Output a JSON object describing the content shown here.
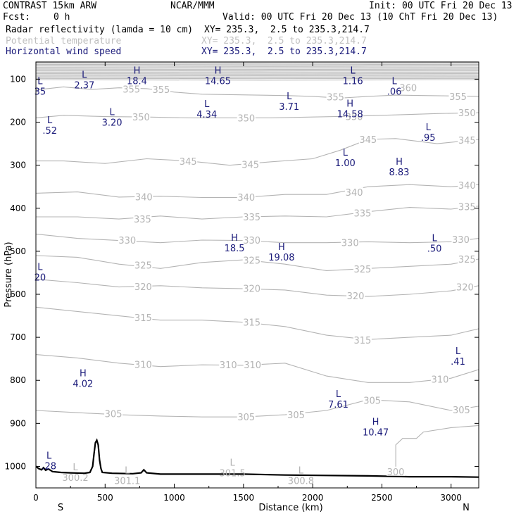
{
  "header": {
    "model": "CONTRAST 15km ARW",
    "center": "NCAR/MMM",
    "init": "Init: 00 UTC Fri 20 Dec 13",
    "fcst_label": "Fcst:",
    "fcst_value": "0 h",
    "valid": "Valid: 00 UTC Fri 20 Dec 13 (10 ChT Fri 20 Dec 13)",
    "fields": [
      {
        "name": "Radar reflectivity (lamda = 10 cm)",
        "xy": "XY= 235.3,  2.5 to 235.3,214.7"
      },
      {
        "name": "Potential temperature",
        "xy": "XY= 235.3,  2.5 to 235.3,214.7"
      },
      {
        "name": "Horizontal wind speed",
        "xy": "XY= 235.3,  2.5 to 235.3,214.7"
      }
    ]
  },
  "colors": {
    "theta": "#b4b4b4",
    "wind": "#1a1a7a",
    "terrain": "#000000",
    "surface_labels": "#b4b4b4"
  },
  "chart_data": {
    "type": "cross-section",
    "xlabel": "Distance (km)",
    "ylabel": "Pressure (hPa)",
    "xlim": [
      0,
      3200
    ],
    "ylim": [
      1050,
      60
    ],
    "x_ticks": [
      0,
      500,
      1000,
      1500,
      2000,
      2500,
      3000
    ],
    "y_ticks": [
      100,
      200,
      300,
      400,
      500,
      600,
      700,
      800,
      900,
      1000
    ],
    "end_left": "S",
    "end_right": "N",
    "theta_contours": [
      {
        "level": 355,
        "points": [
          [
            0,
            125
          ],
          [
            200,
            118
          ],
          [
            400,
            124
          ],
          [
            600,
            120
          ],
          [
            800,
            122
          ],
          [
            1000,
            130
          ],
          [
            1200,
            135
          ],
          [
            1400,
            136
          ],
          [
            1600,
            137
          ],
          [
            1800,
            138
          ],
          [
            2000,
            140
          ],
          [
            2200,
            144
          ],
          [
            2400,
            140
          ],
          [
            2600,
            137
          ],
          [
            2800,
            138
          ],
          [
            3200,
            140
          ]
        ]
      },
      {
        "level": 350,
        "points": [
          [
            0,
            190
          ],
          [
            200,
            184
          ],
          [
            500,
            187
          ],
          [
            800,
            188
          ],
          [
            1100,
            190
          ],
          [
            1400,
            190
          ],
          [
            1700,
            190
          ],
          [
            2000,
            188
          ],
          [
            2300,
            186
          ],
          [
            2600,
            183
          ],
          [
            2900,
            180
          ],
          [
            3200,
            178
          ]
        ]
      },
      {
        "level": 345,
        "points": [
          [
            0,
            290
          ],
          [
            200,
            290
          ],
          [
            500,
            296
          ],
          [
            800,
            285
          ],
          [
            1100,
            290
          ],
          [
            1400,
            300
          ],
          [
            1700,
            292
          ],
          [
            2000,
            285
          ],
          [
            2200,
            265
          ],
          [
            2400,
            240
          ],
          [
            2600,
            238
          ],
          [
            2900,
            250
          ],
          [
            3200,
            240
          ]
        ]
      },
      {
        "level": 340,
        "points": [
          [
            0,
            365
          ],
          [
            300,
            362
          ],
          [
            600,
            374
          ],
          [
            900,
            372
          ],
          [
            1200,
            375
          ],
          [
            1500,
            375
          ],
          [
            1800,
            368
          ],
          [
            2100,
            368
          ],
          [
            2400,
            350
          ],
          [
            2700,
            345
          ],
          [
            3000,
            350
          ],
          [
            3200,
            345
          ]
        ]
      },
      {
        "level": 335,
        "points": [
          [
            0,
            420
          ],
          [
            300,
            420
          ],
          [
            600,
            425
          ],
          [
            900,
            418
          ],
          [
            1200,
            425
          ],
          [
            1500,
            420
          ],
          [
            1800,
            418
          ],
          [
            2100,
            420
          ],
          [
            2400,
            408
          ],
          [
            2700,
            398
          ],
          [
            3000,
            402
          ],
          [
            3200,
            395
          ]
        ]
      },
      {
        "level": 330,
        "points": [
          [
            0,
            460
          ],
          [
            300,
            470
          ],
          [
            600,
            475
          ],
          [
            900,
            480
          ],
          [
            1200,
            474
          ],
          [
            1500,
            475
          ],
          [
            1800,
            480
          ],
          [
            2100,
            480
          ],
          [
            2400,
            478
          ],
          [
            2700,
            480
          ],
          [
            3000,
            478
          ],
          [
            3200,
            470
          ]
        ]
      },
      {
        "level": 325,
        "points": [
          [
            0,
            510
          ],
          [
            300,
            514
          ],
          [
            600,
            530
          ],
          [
            900,
            540
          ],
          [
            1200,
            526
          ],
          [
            1500,
            520
          ],
          [
            1800,
            530
          ],
          [
            2100,
            545
          ],
          [
            2400,
            540
          ],
          [
            2700,
            535
          ],
          [
            3000,
            530
          ],
          [
            3200,
            518
          ]
        ]
      },
      {
        "level": 320,
        "points": [
          [
            0,
            565
          ],
          [
            300,
            573
          ],
          [
            600,
            583
          ],
          [
            900,
            580
          ],
          [
            1200,
            585
          ],
          [
            1500,
            587
          ],
          [
            1800,
            590
          ],
          [
            2100,
            602
          ],
          [
            2400,
            605
          ],
          [
            2700,
            600
          ],
          [
            3000,
            592
          ],
          [
            3200,
            580
          ]
        ]
      },
      {
        "level": 315,
        "points": [
          [
            0,
            630
          ],
          [
            300,
            640
          ],
          [
            600,
            650
          ],
          [
            900,
            660
          ],
          [
            1200,
            660
          ],
          [
            1500,
            665
          ],
          [
            1800,
            675
          ],
          [
            2100,
            695
          ],
          [
            2400,
            705
          ],
          [
            2700,
            700
          ],
          [
            3000,
            695
          ],
          [
            3200,
            680
          ]
        ]
      },
      {
        "level": 310,
        "points": [
          [
            0,
            740
          ],
          [
            300,
            748
          ],
          [
            600,
            760
          ],
          [
            900,
            768
          ],
          [
            1200,
            764
          ],
          [
            1500,
            765
          ],
          [
            1800,
            760
          ],
          [
            2100,
            790
          ],
          [
            2400,
            805
          ],
          [
            2700,
            805
          ],
          [
            3000,
            795
          ],
          [
            3200,
            775
          ]
        ]
      },
      {
        "level": 305,
        "points": [
          [
            0,
            870
          ],
          [
            300,
            875
          ],
          [
            600,
            880
          ],
          [
            900,
            883
          ],
          [
            1200,
            885
          ],
          [
            1500,
            885
          ],
          [
            1800,
            880
          ],
          [
            2100,
            870
          ],
          [
            2400,
            845
          ],
          [
            2700,
            850
          ],
          [
            3000,
            870
          ],
          [
            3200,
            860
          ]
        ]
      },
      {
        "level": 300,
        "points": [
          [
            2600,
            1020
          ],
          [
            2600,
            950
          ],
          [
            2650,
            935
          ],
          [
            2750,
            935
          ],
          [
            2800,
            920
          ],
          [
            3000,
            910
          ],
          [
            3200,
            905
          ]
        ]
      }
    ],
    "theta_labels": [
      {
        "text": "355",
        "x": 690,
        "y": 123
      },
      {
        "text": "355",
        "x": 905,
        "y": 124
      },
      {
        "text": "355",
        "x": 2165,
        "y": 141
      },
      {
        "text": "355",
        "x": 3050,
        "y": 140
      },
      {
        "text": "360",
        "x": 2690,
        "y": 120
      },
      {
        "text": "350",
        "x": 760,
        "y": 188
      },
      {
        "text": "350",
        "x": 1520,
        "y": 190
      },
      {
        "text": "350",
        "x": 2300,
        "y": 187
      },
      {
        "text": "350",
        "x": 3115,
        "y": 178
      },
      {
        "text": "345",
        "x": 1550,
        "y": 298
      },
      {
        "text": "345",
        "x": 2400,
        "y": 240
      },
      {
        "text": "345",
        "x": 1100,
        "y": 291
      },
      {
        "text": "345",
        "x": 3115,
        "y": 242
      },
      {
        "text": "340",
        "x": 780,
        "y": 373
      },
      {
        "text": "340",
        "x": 1520,
        "y": 374
      },
      {
        "text": "340",
        "x": 2300,
        "y": 363
      },
      {
        "text": "340",
        "x": 3115,
        "y": 346
      },
      {
        "text": "335",
        "x": 770,
        "y": 425
      },
      {
        "text": "335",
        "x": 1560,
        "y": 420
      },
      {
        "text": "335",
        "x": 2360,
        "y": 411
      },
      {
        "text": "335",
        "x": 3115,
        "y": 396
      },
      {
        "text": "330",
        "x": 660,
        "y": 474
      },
      {
        "text": "330",
        "x": 1560,
        "y": 474
      },
      {
        "text": "330",
        "x": 2270,
        "y": 480
      },
      {
        "text": "330",
        "x": 3070,
        "y": 472
      },
      {
        "text": "325",
        "x": 775,
        "y": 532
      },
      {
        "text": "325",
        "x": 1560,
        "y": 521
      },
      {
        "text": "325",
        "x": 2360,
        "y": 541
      },
      {
        "text": "325",
        "x": 3115,
        "y": 518
      },
      {
        "text": "320",
        "x": 775,
        "y": 582
      },
      {
        "text": "320",
        "x": 1560,
        "y": 586
      },
      {
        "text": "320",
        "x": 2310,
        "y": 603
      },
      {
        "text": "320",
        "x": 3100,
        "y": 583
      },
      {
        "text": "315",
        "x": 775,
        "y": 654
      },
      {
        "text": "315",
        "x": 1560,
        "y": 665
      },
      {
        "text": "315",
        "x": 2360,
        "y": 706
      },
      {
        "text": "310",
        "x": 775,
        "y": 763
      },
      {
        "text": "310",
        "x": 1390,
        "y": 764
      },
      {
        "text": "310",
        "x": 1565,
        "y": 764
      },
      {
        "text": "310",
        "x": 2920,
        "y": 797
      },
      {
        "text": "305",
        "x": 560,
        "y": 877
      },
      {
        "text": "305",
        "x": 1520,
        "y": 885
      },
      {
        "text": "305",
        "x": 1880,
        "y": 880
      },
      {
        "text": "305",
        "x": 2430,
        "y": 846
      },
      {
        "text": "305",
        "x": 3075,
        "y": 868
      },
      {
        "text": "300",
        "x": 2600,
        "y": 1012
      }
    ],
    "extrema": [
      {
        "type": "L",
        "value": "2.37",
        "x": 350,
        "y": 100
      },
      {
        "type": "H",
        "value": "18.4",
        "x": 730,
        "y": 90
      },
      {
        "type": "H",
        "value": "14.65",
        "x": 1315,
        "y": 90
      },
      {
        "type": "L",
        "value": "1.16",
        "x": 2290,
        "y": 90
      },
      {
        "type": "L",
        "value": "35",
        "x": 30,
        "y": 115
      },
      {
        "type": "L",
        "value": ".06",
        "x": 2590,
        "y": 115
      },
      {
        "type": "L",
        "value": "3.71",
        "x": 1830,
        "y": 150
      },
      {
        "type": "L",
        "value": "4.34",
        "x": 1235,
        "y": 168
      },
      {
        "type": "H",
        "value": "14.58",
        "x": 2270,
        "y": 167
      },
      {
        "type": "L",
        "value": "3.20",
        "x": 550,
        "y": 187
      },
      {
        "type": "L",
        "value": ".52",
        "x": 100,
        "y": 206
      },
      {
        "type": "L",
        "value": ".95",
        "x": 2835,
        "y": 222
      },
      {
        "type": "L",
        "value": "1.00",
        "x": 2235,
        "y": 281
      },
      {
        "type": "H",
        "value": "8.83",
        "x": 2625,
        "y": 302
      },
      {
        "type": "H",
        "value": "18.5",
        "x": 1435,
        "y": 479
      },
      {
        "type": "L",
        "value": ".50",
        "x": 2880,
        "y": 480
      },
      {
        "type": "H",
        "value": "19.08",
        "x": 1775,
        "y": 500
      },
      {
        "type": "L",
        "value": "20",
        "x": 30,
        "y": 547
      },
      {
        "type": "L",
        "value": ".41",
        "x": 3050,
        "y": 742
      },
      {
        "type": "H",
        "value": "4.02",
        "x": 340,
        "y": 794
      },
      {
        "type": "L",
        "value": "7.61",
        "x": 2185,
        "y": 842
      },
      {
        "type": "H",
        "value": "10.47",
        "x": 2455,
        "y": 907
      },
      {
        "type": "L",
        "value": ".28",
        "x": 95,
        "y": 985
      }
    ],
    "surface_labels": [
      {
        "type": "L",
        "value": "300.2",
        "x": 285,
        "y": 1012
      },
      {
        "type": "L",
        "value": "301.1",
        "x": 660,
        "y": 1020
      },
      {
        "type": "L",
        "value": "301.5",
        "x": 1420,
        "y": 1002
      },
      {
        "type": "L",
        "value": "300.8",
        "x": 1915,
        "y": 1020
      }
    ],
    "terrain": [
      [
        0,
        1000
      ],
      [
        20,
        1005
      ],
      [
        40,
        1008
      ],
      [
        55,
        1003
      ],
      [
        70,
        1009
      ],
      [
        90,
        1006
      ],
      [
        120,
        1012
      ],
      [
        180,
        1014
      ],
      [
        250,
        1015
      ],
      [
        350,
        1016
      ],
      [
        390,
        1014
      ],
      [
        410,
        1000
      ],
      [
        420,
        970
      ],
      [
        430,
        945
      ],
      [
        440,
        939
      ],
      [
        450,
        950
      ],
      [
        460,
        985
      ],
      [
        470,
        1005
      ],
      [
        480,
        1014
      ],
      [
        550,
        1016
      ],
      [
        700,
        1017
      ],
      [
        760,
        1015
      ],
      [
        780,
        1008
      ],
      [
        800,
        1015
      ],
      [
        900,
        1018
      ],
      [
        1200,
        1018
      ],
      [
        1500,
        1018
      ],
      [
        1800,
        1020
      ],
      [
        2100,
        1021
      ],
      [
        2400,
        1022
      ],
      [
        2700,
        1024
      ],
      [
        3000,
        1024
      ],
      [
        3200,
        1025
      ]
    ]
  }
}
